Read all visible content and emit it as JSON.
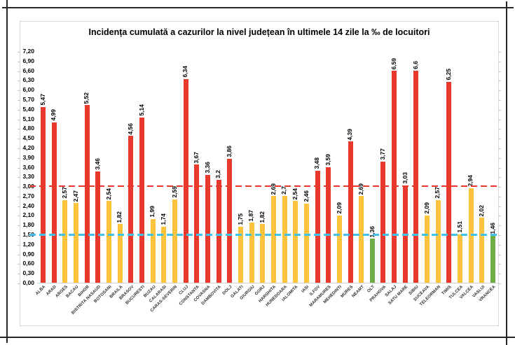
{
  "title": "Incidența cumulată a cazurilor la nivel județean în ultimele 14 zile la ‰ de locuitori",
  "chart_data": {
    "type": "bar",
    "title": "Incidența cumulată a cazurilor la nivel județean în ultimele 14 zile la ‰ de locuitori",
    "xlabel": "",
    "ylabel": "",
    "ylim": [
      0,
      7.2
    ],
    "ytick_step": 0.3,
    "grid": false,
    "legend": "none",
    "decimal_separator": ",",
    "categories": [
      "ALBA",
      "ARAD",
      "ARGES",
      "BACAU",
      "BIHOR",
      "BISTRITA NASAUD",
      "BOTOSANI",
      "BRAILA",
      "BRASOV",
      "BUCURESTI",
      "BUZAU",
      "CALARASI",
      "CARAS-SEVERIN",
      "CLUJ",
      "CONSTANTA",
      "COVASNA",
      "DAMBOVITA",
      "DOLJ",
      "GALATI",
      "GIURGIU",
      "GORJ",
      "HARGHITA",
      "HUNEDOARA",
      "IALOMITA",
      "IASI",
      "ILFOV",
      "MARAMURES",
      "MEHEDINTI",
      "MURES",
      "NEAMT",
      "OLT",
      "PRAHOVA",
      "SALAJ",
      "SATU MARE",
      "SIBIU",
      "SUCEAVA",
      "TELEORMAN",
      "TIMIS",
      "TULCEA",
      "VALCEA",
      "VASLUI",
      "VRANCEA"
    ],
    "values": [
      5.47,
      4.99,
      2.57,
      2.47,
      5.52,
      3.46,
      2.54,
      1.82,
      4.56,
      5.14,
      1.99,
      1.74,
      2.59,
      6.34,
      3.67,
      3.36,
      3.2,
      3.86,
      1.75,
      1.87,
      1.82,
      2.69,
      2.7,
      2.54,
      2.46,
      3.48,
      3.59,
      2.09,
      4.39,
      2.69,
      1.36,
      3.77,
      6.59,
      3.03,
      6.6,
      2.09,
      2.57,
      6.25,
      1.51,
      2.94,
      2.02,
      1.46
    ],
    "value_labels": [
      "5,47",
      "4,99",
      "2,57",
      "2,47",
      "5,52",
      "3,46",
      "2,54",
      "1,82",
      "4,56",
      "5,14",
      "1,99",
      "1,74",
      "2,59",
      "6,34",
      "3,67",
      "3,36",
      "3,2",
      "3,86",
      "1,75",
      "1,87",
      "1,82",
      "2,69",
      "2,7",
      "2,54",
      "2,46",
      "3,48",
      "3,59",
      "2,09",
      "4,39",
      "2,69",
      "1,36",
      "3,77",
      "6,59",
      "3,03",
      "6,6",
      "2,09",
      "2,57",
      "6,25",
      "1,51",
      "2,94",
      "2,02",
      "1,46"
    ],
    "bar_colors": [
      "red",
      "red",
      "yellow",
      "yellow",
      "red",
      "red",
      "yellow",
      "yellow",
      "red",
      "red",
      "yellow",
      "yellow",
      "yellow",
      "red",
      "red",
      "red",
      "red",
      "red",
      "yellow",
      "yellow",
      "yellow",
      "yellow",
      "yellow",
      "yellow",
      "yellow",
      "red",
      "red",
      "yellow",
      "red",
      "yellow",
      "green",
      "red",
      "red",
      "red",
      "red",
      "yellow",
      "yellow",
      "red",
      "yellow",
      "yellow",
      "yellow",
      "green"
    ],
    "colors": {
      "red": "#e8392c",
      "yellow": "#fcc43c",
      "green": "#70ad47"
    },
    "ytick_labels": [
      "0,00",
      "0,30",
      "0,60",
      "0,90",
      "1,20",
      "1,50",
      "1,80",
      "2,10",
      "2,40",
      "2,70",
      "3,00",
      "3,30",
      "3,60",
      "3,90",
      "4,20",
      "4,50",
      "4,80",
      "5,10",
      "5,40",
      "5,70",
      "6,00",
      "6,30",
      "6,60",
      "6,90",
      "7,20"
    ],
    "reference_lines": [
      {
        "name": "upper-threshold-line",
        "value": 3.0,
        "color": "#e8392c",
        "thickness": 2
      },
      {
        "name": "lower-threshold-line",
        "value": 1.5,
        "color": "#3ec1ec",
        "thickness": 3
      }
    ]
  }
}
